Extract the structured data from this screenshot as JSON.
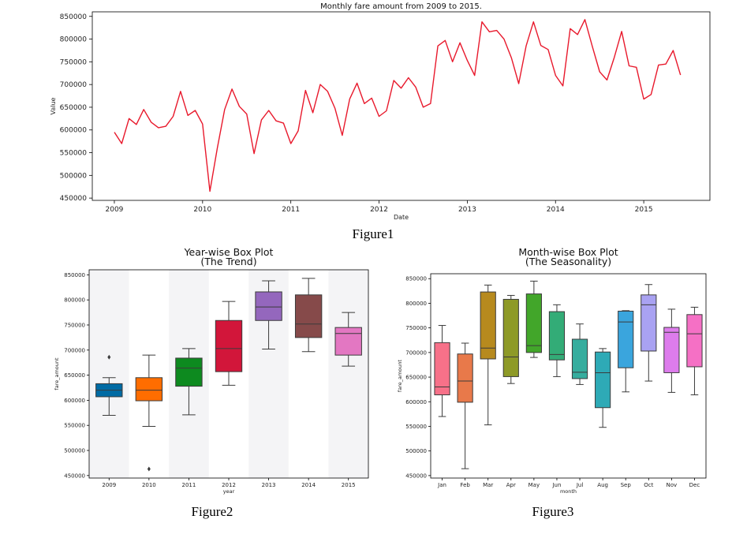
{
  "chart_data": [
    {
      "type": "line",
      "title": "Monthly fare amount from 2009 to 2015.",
      "xlabel": "Date",
      "ylabel": "Value",
      "caption": "Figure1",
      "colors": {
        "line": "#e8192c"
      },
      "xlim": [
        2008.75,
        2015.75
      ],
      "ylim": [
        445000,
        860000
      ],
      "xticks": [
        2009,
        2010,
        2011,
        2012,
        2013,
        2014,
        2015
      ],
      "xtick_labels": [
        "2009",
        "2010",
        "2011",
        "2012",
        "2013",
        "2014",
        "2015"
      ],
      "yticks": [
        450000,
        500000,
        550000,
        600000,
        650000,
        700000,
        750000,
        800000,
        850000
      ],
      "ytick_labels": [
        "450000",
        "500000",
        "550000",
        "600000",
        "650000",
        "700000",
        "750000",
        "800000",
        "850000"
      ],
      "grid": false,
      "x_start": "2009-01",
      "x_step": "1 month",
      "values": [
        595000,
        570000,
        625000,
        612000,
        645000,
        617000,
        605000,
        608000,
        630000,
        685000,
        632000,
        643000,
        613000,
        465000,
        560000,
        645000,
        690000,
        652000,
        635000,
        548000,
        622000,
        643000,
        620000,
        615000,
        570000,
        598000,
        687000,
        638000,
        700000,
        685000,
        648000,
        588000,
        668000,
        703000,
        658000,
        670000,
        630000,
        642000,
        709000,
        692000,
        715000,
        694000,
        650000,
        658000,
        785000,
        797000,
        750000,
        792000,
        753000,
        720000,
        838000,
        816000,
        819000,
        800000,
        759000,
        702000,
        785000,
        838000,
        786000,
        777000,
        720000,
        697000,
        823000,
        810000,
        843000,
        784000,
        728000,
        710000,
        760000,
        817000,
        741000,
        738000,
        668000,
        678000,
        743000,
        745000,
        775000,
        721000
      ]
    },
    {
      "type": "box",
      "title": "Year-wise Box Plot\n(The Trend)",
      "title_lines": [
        "Year-wise Box Plot",
        "(The Trend)"
      ],
      "xlabel": "year",
      "ylabel": "fare_amount",
      "caption": "Figure2",
      "ylim": [
        445000,
        860000
      ],
      "yticks": [
        450000,
        500000,
        550000,
        600000,
        650000,
        700000,
        750000,
        800000,
        850000
      ],
      "ytick_labels": [
        "450000",
        "500000",
        "550000",
        "600000",
        "650000",
        "700000",
        "750000",
        "800000",
        "850000"
      ],
      "categories": [
        "2009",
        "2010",
        "2011",
        "2012",
        "2013",
        "2014",
        "2015"
      ],
      "boxes": [
        {
          "whisker_low": 570000,
          "q1": 607000,
          "median": 620000,
          "q3": 633000,
          "whisker_high": 645000,
          "fliers": [
            686000
          ],
          "color": "#006ba4"
        },
        {
          "whisker_low": 548000,
          "q1": 599000,
          "median": 620000,
          "q3": 645000,
          "whisker_high": 690000,
          "fliers": [
            463000
          ],
          "color": "#ff6d00"
        },
        {
          "whisker_low": 571000,
          "q1": 628000,
          "median": 664000,
          "q3": 684000,
          "whisker_high": 703000,
          "fliers": [],
          "color": "#0d8a1f"
        },
        {
          "whisker_low": 630000,
          "q1": 657000,
          "median": 703000,
          "q3": 759000,
          "whisker_high": 797000,
          "fliers": [],
          "color": "#d2163a"
        },
        {
          "whisker_low": 702000,
          "q1": 759000,
          "median": 786000,
          "q3": 816000,
          "whisker_high": 838000,
          "fliers": [],
          "color": "#9467bd"
        },
        {
          "whisker_low": 697000,
          "q1": 725000,
          "median": 752000,
          "q3": 810000,
          "whisker_high": 843000,
          "fliers": [],
          "color": "#864a4a"
        },
        {
          "whisker_low": 668000,
          "q1": 690000,
          "median": 733000,
          "q3": 745000,
          "whisker_high": 775000,
          "fliers": [],
          "color": "#e377c2"
        }
      ]
    },
    {
      "type": "box",
      "title": "Month-wise Box Plot\n(The Seasonality)",
      "title_lines": [
        "Month-wise Box Plot",
        "(The Seasonality)"
      ],
      "xlabel": "month",
      "ylabel": "fare_amount",
      "caption": "Figure3",
      "ylim": [
        445000,
        860000
      ],
      "yticks": [
        450000,
        500000,
        550000,
        600000,
        650000,
        700000,
        750000,
        800000,
        850000
      ],
      "ytick_labels": [
        "450000",
        "500000",
        "550000",
        "600000",
        "650000",
        "700000",
        "750000",
        "800000",
        "850000"
      ],
      "categories": [
        "Jan",
        "Feb",
        "Mar",
        "Apr",
        "May",
        "Jun",
        "Jul",
        "Aug",
        "Sep",
        "Oct",
        "Nov",
        "Dec"
      ],
      "boxes": [
        {
          "whisker_low": 570000,
          "q1": 614000,
          "median": 630000,
          "q3": 720000,
          "whisker_high": 755000,
          "fliers": [],
          "color": "#f77189"
        },
        {
          "whisker_low": 464000,
          "q1": 599000,
          "median": 642000,
          "q3": 697000,
          "whisker_high": 719000,
          "fliers": [],
          "color": "#e8794a"
        },
        {
          "whisker_low": 553000,
          "q1": 687000,
          "median": 709000,
          "q3": 823000,
          "whisker_high": 837000,
          "fliers": [],
          "color": "#b78a1e"
        },
        {
          "whisker_low": 637000,
          "q1": 651000,
          "median": 691000,
          "q3": 808000,
          "whisker_high": 816000,
          "fliers": [],
          "color": "#8e9a27"
        },
        {
          "whisker_low": 690000,
          "q1": 700000,
          "median": 714000,
          "q3": 819000,
          "whisker_high": 845000,
          "fliers": [],
          "color": "#42a62a"
        },
        {
          "whisker_low": 651000,
          "q1": 685000,
          "median": 696000,
          "q3": 783000,
          "whisker_high": 797000,
          "fliers": [],
          "color": "#33ac77"
        },
        {
          "whisker_low": 635000,
          "q1": 647000,
          "median": 660000,
          "q3": 727000,
          "whisker_high": 758000,
          "fliers": [],
          "color": "#36ad9e"
        },
        {
          "whisker_low": 548000,
          "q1": 588000,
          "median": 659000,
          "q3": 701000,
          "whisker_high": 708000,
          "fliers": [],
          "color": "#2eaab6"
        },
        {
          "whisker_low": 620000,
          "q1": 669000,
          "median": 762000,
          "q3": 784000,
          "whisker_high": 785000,
          "fliers": [],
          "color": "#3aa5dd"
        },
        {
          "whisker_low": 642000,
          "q1": 703000,
          "median": 797000,
          "q3": 817000,
          "whisker_high": 838000,
          "fliers": [],
          "color": "#a9a2f2"
        },
        {
          "whisker_low": 619000,
          "q1": 659000,
          "median": 741000,
          "q3": 751000,
          "whisker_high": 788000,
          "fliers": [],
          "color": "#dd7cec"
        },
        {
          "whisker_low": 614000,
          "q1": 671000,
          "median": 738000,
          "q3": 777000,
          "whisker_high": 792000,
          "fliers": [],
          "color": "#f570c5"
        }
      ]
    }
  ]
}
